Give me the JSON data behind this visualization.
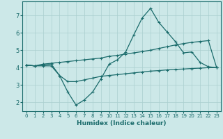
{
  "xlabel": "Humidex (Indice chaleur)",
  "bg_color": "#cce8e8",
  "grid_color": "#aacfcf",
  "line_color": "#1a6b6b",
  "xlim": [
    -0.5,
    23.5
  ],
  "ylim": [
    1.5,
    7.8
  ],
  "yticks": [
    2,
    3,
    4,
    5,
    6,
    7
  ],
  "xticks": [
    0,
    1,
    2,
    3,
    4,
    5,
    6,
    7,
    8,
    9,
    10,
    11,
    12,
    13,
    14,
    15,
    16,
    17,
    18,
    19,
    20,
    21,
    22,
    23
  ],
  "line1_x": [
    0,
    1,
    2,
    3,
    4,
    5,
    6,
    7,
    8,
    9,
    10,
    11,
    12,
    13,
    14,
    15,
    16,
    17,
    18,
    19,
    20,
    21,
    22,
    23
  ],
  "line1_y": [
    4.15,
    4.1,
    4.15,
    4.2,
    3.55,
    2.6,
    1.85,
    2.15,
    2.6,
    3.35,
    4.2,
    4.45,
    4.9,
    5.9,
    6.85,
    7.4,
    6.6,
    6.05,
    5.5,
    4.85,
    4.9,
    4.3,
    4.05,
    4.0
  ],
  "line2_x": [
    0,
    1,
    2,
    3,
    4,
    5,
    6,
    7,
    8,
    9,
    10,
    11,
    12,
    13,
    14,
    15,
    16,
    17,
    18,
    19,
    20,
    21,
    22,
    23
  ],
  "line2_y": [
    4.15,
    4.1,
    4.2,
    4.25,
    4.3,
    4.35,
    4.4,
    4.45,
    4.5,
    4.55,
    4.65,
    4.7,
    4.78,
    4.85,
    4.92,
    5.0,
    5.1,
    5.2,
    5.3,
    5.38,
    5.45,
    5.5,
    5.55,
    4.0
  ],
  "line3_x": [
    0,
    1,
    2,
    3,
    4,
    5,
    6,
    7,
    8,
    9,
    10,
    11,
    12,
    13,
    14,
    15,
    16,
    17,
    18,
    19,
    20,
    21,
    22,
    23
  ],
  "line3_y": [
    4.15,
    4.1,
    4.1,
    4.1,
    3.55,
    3.2,
    3.2,
    3.3,
    3.4,
    3.5,
    3.55,
    3.6,
    3.65,
    3.7,
    3.75,
    3.8,
    3.83,
    3.87,
    3.9,
    3.92,
    3.95,
    3.97,
    4.0,
    4.0
  ]
}
